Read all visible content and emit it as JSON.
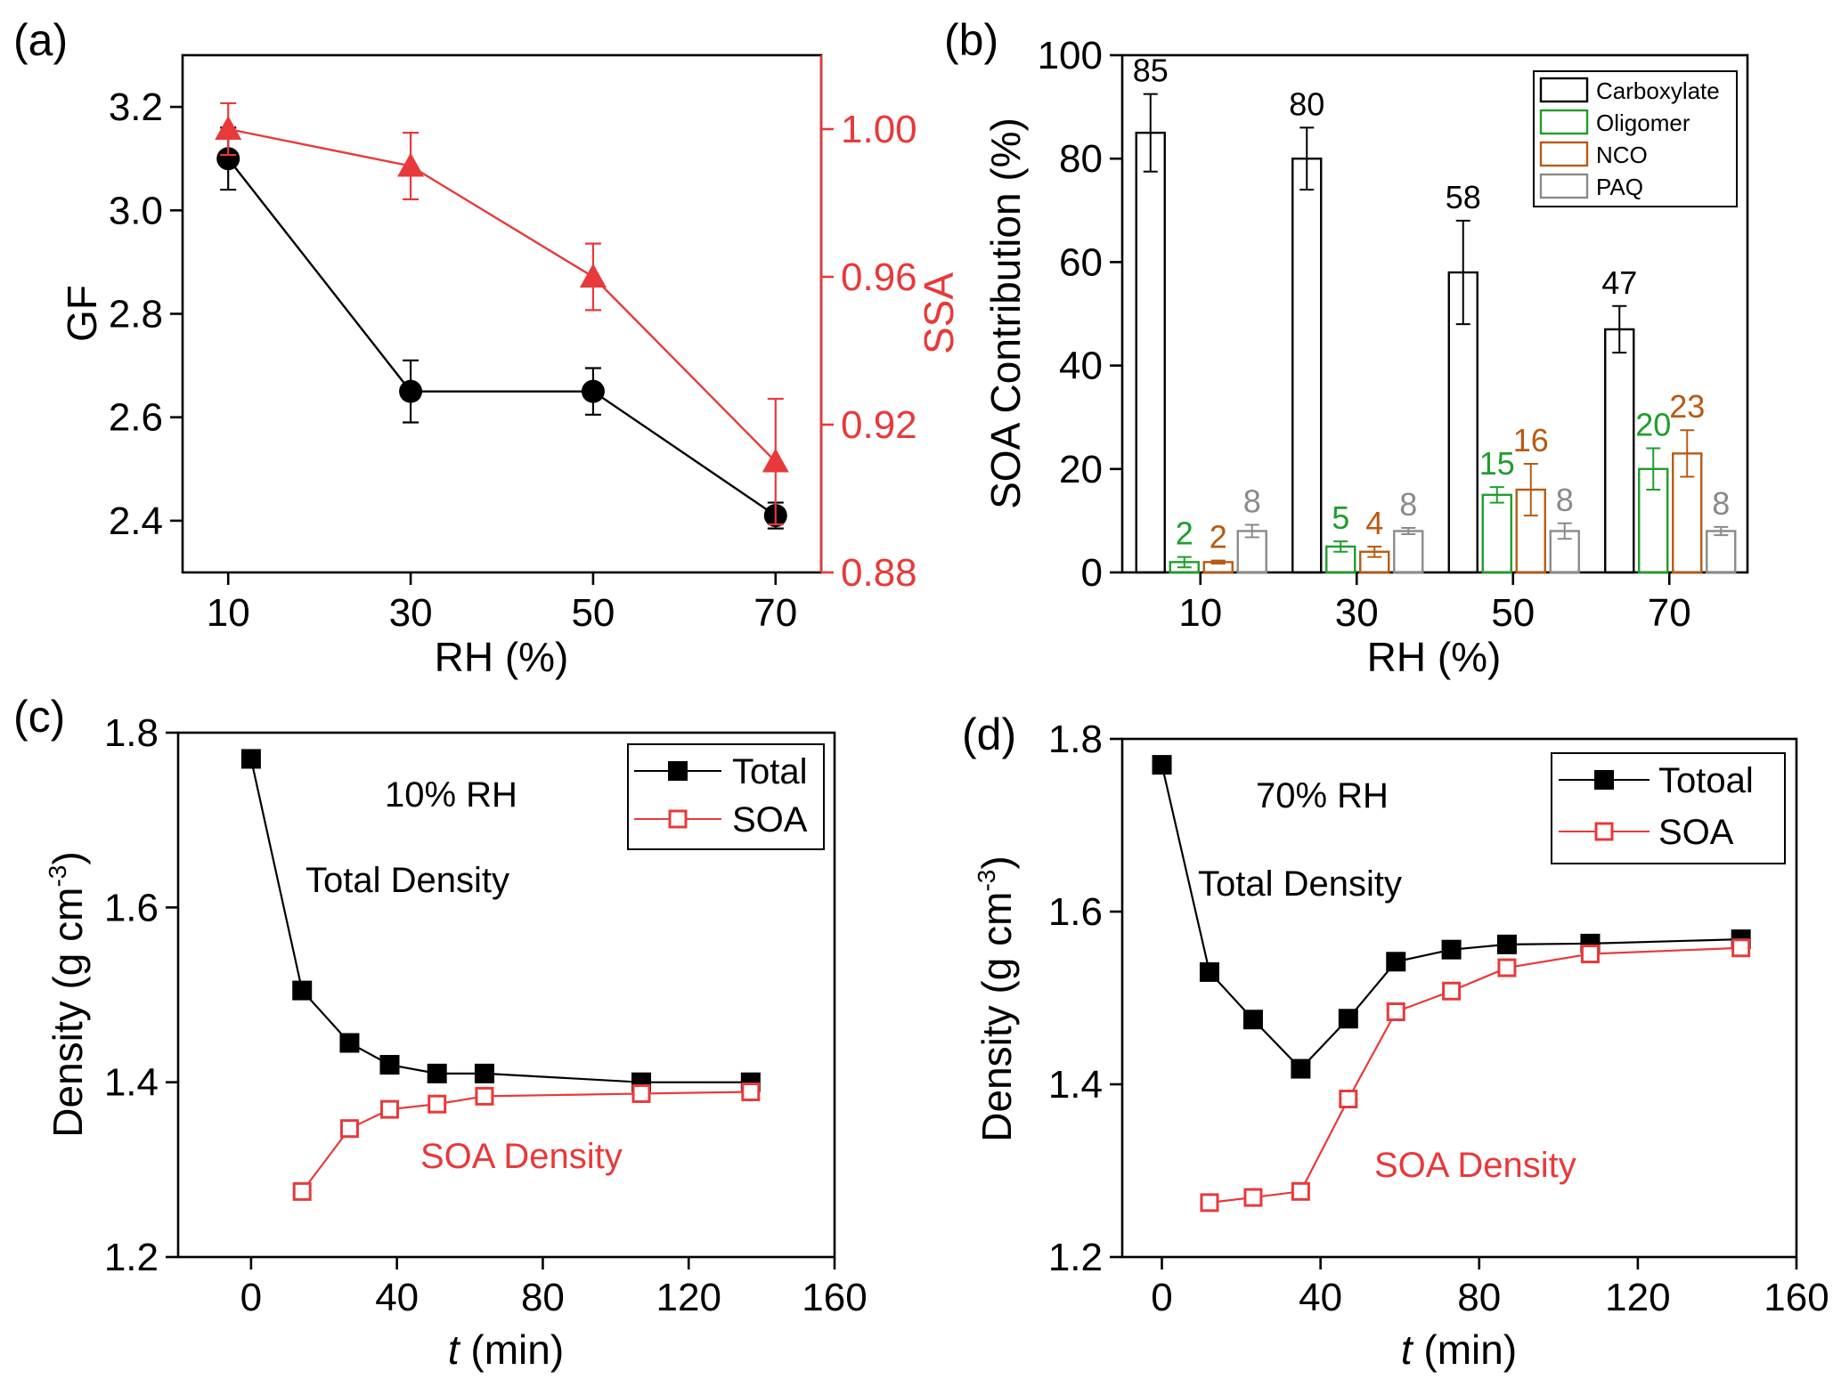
{
  "colors": {
    "black": "#000000",
    "red": "#e8393b",
    "green": "#1f9e2c",
    "orange": "#b85a12",
    "gray": "#8a8a8a"
  },
  "panel_a": {
    "label": "(a)"
  },
  "panel_b": {
    "label": "(b)"
  },
  "panel_c": {
    "label": "(c)",
    "condition": "10% RH",
    "total_annotation": "Total Density",
    "soa_annotation": "SOA Density"
  },
  "panel_d": {
    "label": "(d)",
    "condition": "70% RH",
    "total_annotation": "Total Density",
    "soa_annotation": "SOA Density"
  },
  "chart_data": [
    {
      "panel": "a",
      "type": "line",
      "xlabel": "RH (%)",
      "ylabel": "GF",
      "y2label": "SSA",
      "x": [
        10,
        30,
        50,
        70
      ],
      "xticks": [
        "10",
        "30",
        "50",
        "70"
      ],
      "xlim": [
        5,
        75
      ],
      "ylim": [
        2.3,
        3.3
      ],
      "yticks": [
        "2.4",
        "2.6",
        "2.8",
        "3.0",
        "3.2"
      ],
      "y2lim": [
        0.88,
        1.02
      ],
      "y2ticks": [
        "0.88",
        "0.92",
        "0.96",
        "1.00"
      ],
      "series": [
        {
          "name": "GF",
          "axis": "left",
          "marker": "circle",
          "color": "#000000",
          "values": [
            3.1,
            2.65,
            2.65,
            2.41
          ],
          "errors": [
            0.06,
            0.06,
            0.045,
            0.025
          ]
        },
        {
          "name": "SSA",
          "axis": "right",
          "marker": "triangle",
          "color": "#e8393b",
          "values": [
            1.0,
            0.99,
            0.96,
            0.91
          ],
          "errors": [
            0.007,
            0.009,
            0.009,
            0.017
          ]
        }
      ]
    },
    {
      "panel": "b",
      "type": "bar",
      "xlabel": "RH (%)",
      "ylabel": "SOA Contribution (%)",
      "categories": [
        "10",
        "30",
        "50",
        "70"
      ],
      "ylim": [
        0,
        100
      ],
      "yticks": [
        "0",
        "20",
        "40",
        "60",
        "80",
        "100"
      ],
      "legend_position": "top-right",
      "series": [
        {
          "name": "Carboxylate",
          "color": "#000000",
          "values": [
            85,
            80,
            58,
            47
          ],
          "errors": [
            7.5,
            6,
            10,
            4.5
          ],
          "labels": [
            "85",
            "80",
            "58",
            "47"
          ]
        },
        {
          "name": "Oligomer",
          "color": "#1f9e2c",
          "values": [
            2,
            5,
            15,
            20
          ],
          "errors": [
            1,
            1,
            1.5,
            4
          ],
          "labels": [
            "2",
            "5",
            "15",
            "20"
          ]
        },
        {
          "name": "NCO",
          "color": "#b85a12",
          "values": [
            2,
            4,
            16,
            23
          ],
          "errors": [
            0.3,
            1,
            5,
            4.5
          ],
          "labels": [
            "2",
            "4",
            "16",
            "23"
          ]
        },
        {
          "name": "PAQ",
          "color": "#8a8a8a",
          "values": [
            8,
            8,
            8,
            8
          ],
          "errors": [
            1.2,
            0.6,
            1.5,
            0.8
          ],
          "labels": [
            "8",
            "8",
            "8",
            "8"
          ]
        }
      ]
    },
    {
      "panel": "c",
      "type": "line",
      "xlabel_italic": "t",
      "xlabel_rest": " (min)",
      "ylabel": "Density (g cm",
      "ylabel_sup": "-3",
      "ylabel_close": ")",
      "xlim": [
        -20,
        160
      ],
      "xticks": [
        "0",
        "40",
        "80",
        "120",
        "160"
      ],
      "ylim": [
        1.2,
        1.8
      ],
      "yticks": [
        "1.2",
        "1.4",
        "1.6",
        "1.8"
      ],
      "legend_position": "top-right",
      "series": [
        {
          "name": "Total",
          "marker": "filled-square",
          "color": "#000000",
          "x": [
            0,
            14,
            27,
            38,
            51,
            64,
            107,
            137
          ],
          "y": [
            1.77,
            1.505,
            1.445,
            1.42,
            1.41,
            1.41,
            1.4,
            1.4
          ]
        },
        {
          "name": "SOA",
          "marker": "open-square",
          "color": "#e8393b",
          "x": [
            14,
            27,
            38,
            51,
            64,
            107,
            137
          ],
          "y": [
            1.275,
            1.347,
            1.369,
            1.375,
            1.384,
            1.387,
            1.389
          ]
        }
      ]
    },
    {
      "panel": "d",
      "type": "line",
      "xlabel_italic": "t",
      "xlabel_rest": " (min)",
      "ylabel": "Density (g cm",
      "ylabel_sup": "-3",
      "ylabel_close": ")",
      "xlim": [
        -10,
        160
      ],
      "xticks": [
        "0",
        "40",
        "80",
        "120",
        "160"
      ],
      "ylim": [
        1.2,
        1.8
      ],
      "yticks": [
        "1.2",
        "1.4",
        "1.6",
        "1.8"
      ],
      "legend_position": "top-right",
      "series": [
        {
          "name": "Totoal",
          "marker": "filled-square",
          "color": "#000000",
          "x": [
            0,
            12,
            23,
            35,
            47,
            59,
            73,
            87,
            108,
            146
          ],
          "y": [
            1.77,
            1.53,
            1.475,
            1.418,
            1.476,
            1.542,
            1.556,
            1.562,
            1.563,
            1.568
          ]
        },
        {
          "name": "SOA",
          "marker": "open-square",
          "color": "#e8393b",
          "x": [
            12,
            23,
            35,
            47,
            59,
            73,
            87,
            108,
            146
          ],
          "y": [
            1.263,
            1.269,
            1.276,
            1.383,
            1.484,
            1.508,
            1.535,
            1.551,
            1.558
          ]
        }
      ]
    }
  ]
}
